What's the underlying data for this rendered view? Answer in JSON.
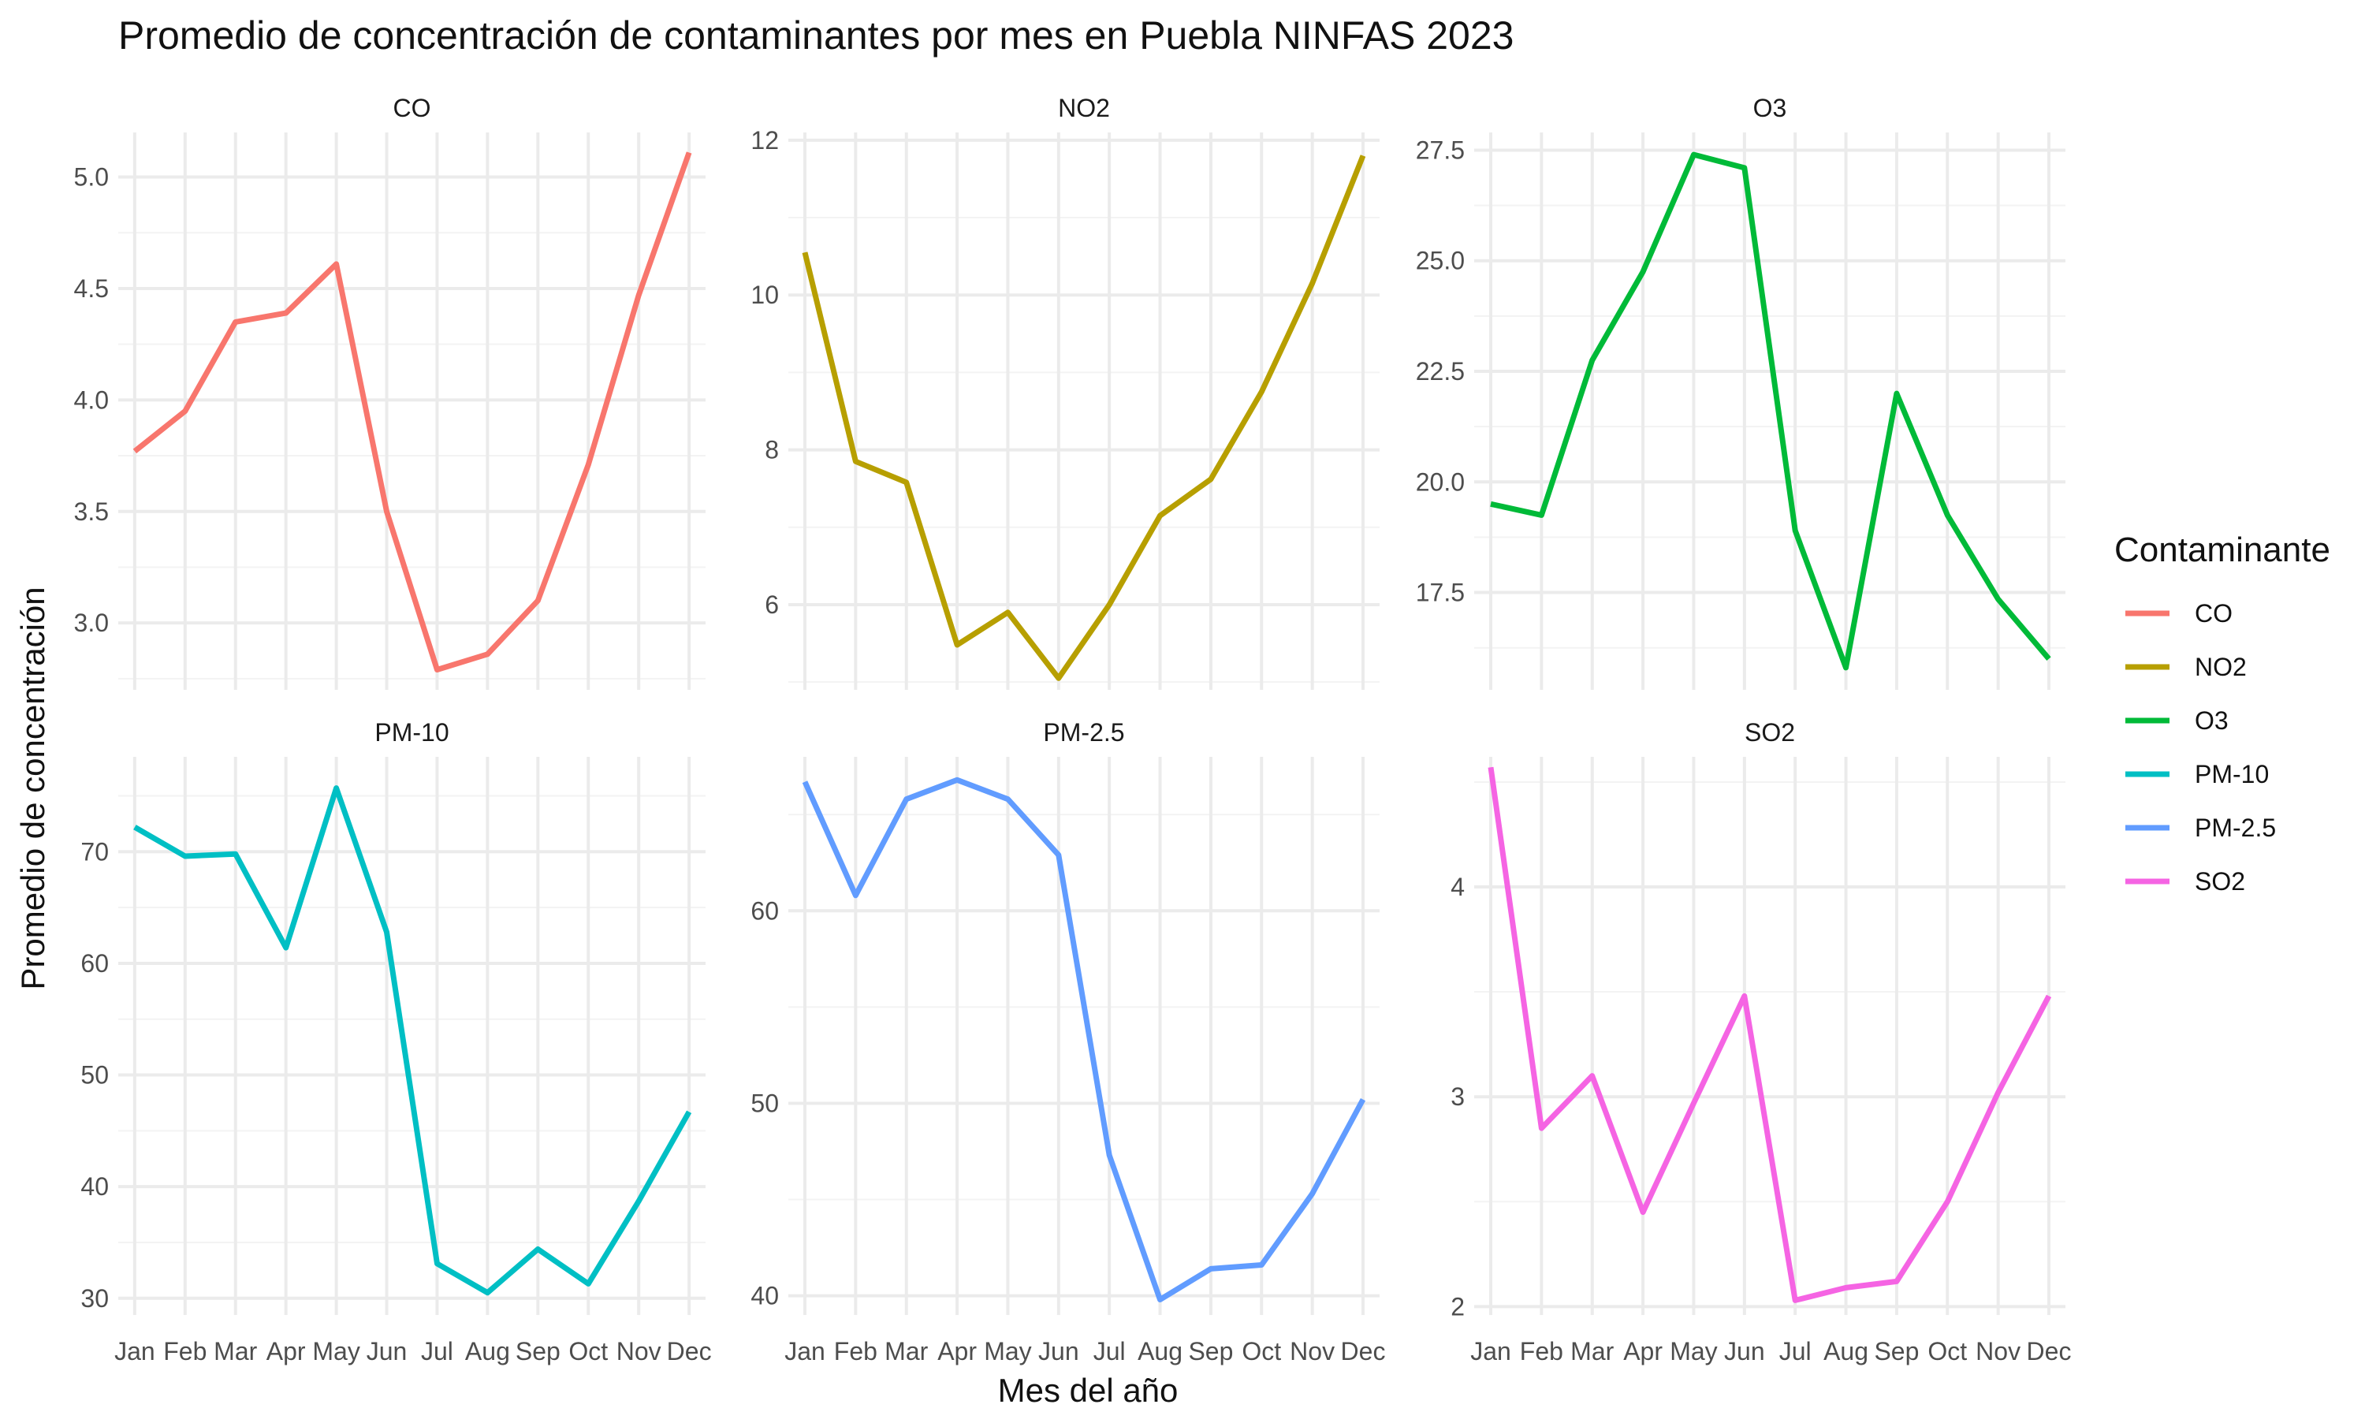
{
  "chart_data": {
    "type": "line",
    "title": "Promedio de concentración de contaminantes por mes en Puebla NINFAS 2023",
    "xlabel": "Mes del año",
    "ylabel": "Promedio de concentración",
    "months": [
      "Jan",
      "Feb",
      "Mar",
      "Apr",
      "May",
      "Jun",
      "Jul",
      "Aug",
      "Sep",
      "Oct",
      "Nov",
      "Dec"
    ],
    "legend": {
      "title": "Contaminante",
      "position": "right",
      "entries": [
        "CO",
        "NO2",
        "O3",
        "PM-10",
        "PM-2.5",
        "SO2"
      ]
    },
    "grid": true,
    "facets": [
      {
        "name": "CO",
        "color": "#F8766D",
        "ylim": [
          2.7,
          5.2
        ],
        "yticks": [
          3.0,
          3.5,
          4.0,
          4.5,
          5.0
        ],
        "ytick_labels": [
          "3.0",
          "3.5",
          "4.0",
          "4.5",
          "5.0"
        ],
        "values": [
          3.77,
          3.95,
          4.35,
          4.39,
          4.61,
          3.5,
          2.79,
          2.86,
          3.1,
          3.71,
          4.47,
          5.11
        ]
      },
      {
        "name": "NO2",
        "color": "#B79F00",
        "ylim": [
          4.9,
          12.1
        ],
        "yticks": [
          6,
          8,
          10,
          12
        ],
        "ytick_labels": [
          "6",
          "8",
          "10",
          "12"
        ],
        "values": [
          10.55,
          7.85,
          7.58,
          5.48,
          5.9,
          5.05,
          6.0,
          7.15,
          7.62,
          8.75,
          10.15,
          11.8
        ]
      },
      {
        "name": "O3",
        "color": "#00BA38",
        "ylim": [
          15.3,
          27.9
        ],
        "yticks": [
          17.5,
          20.0,
          22.5,
          25.0,
          27.5
        ],
        "ytick_labels": [
          "17.5",
          "20.0",
          "22.5",
          "25.0",
          "27.5"
        ],
        "values": [
          19.5,
          19.25,
          22.75,
          24.75,
          27.4,
          27.1,
          18.9,
          15.8,
          22.0,
          19.25,
          17.35,
          16.0
        ]
      },
      {
        "name": "PM-10",
        "color": "#00BFC4",
        "ylim": [
          28.5,
          78.5
        ],
        "yticks": [
          30,
          40,
          50,
          60,
          70
        ],
        "ytick_labels": [
          "30",
          "40",
          "50",
          "60",
          "70"
        ],
        "values": [
          72.2,
          69.6,
          69.8,
          61.4,
          75.7,
          62.8,
          33.1,
          30.5,
          34.4,
          31.3,
          38.7,
          46.7
        ]
      },
      {
        "name": "PM-2.5",
        "color": "#619CFF",
        "ylim": [
          39.0,
          68.0
        ],
        "yticks": [
          40,
          50,
          60
        ],
        "ytick_labels": [
          "40",
          "50",
          "60"
        ],
        "values": [
          66.7,
          60.8,
          65.8,
          66.8,
          65.8,
          62.9,
          47.3,
          39.8,
          41.4,
          41.6,
          45.3,
          50.2
        ]
      },
      {
        "name": "SO2",
        "color": "#F564E3",
        "ylim": [
          1.96,
          4.62
        ],
        "yticks": [
          2,
          3,
          4
        ],
        "ytick_labels": [
          "2",
          "3",
          "4"
        ],
        "values": [
          4.57,
          2.85,
          3.1,
          2.45,
          2.97,
          3.48,
          2.03,
          2.09,
          2.12,
          2.5,
          3.02,
          3.48
        ]
      }
    ]
  }
}
